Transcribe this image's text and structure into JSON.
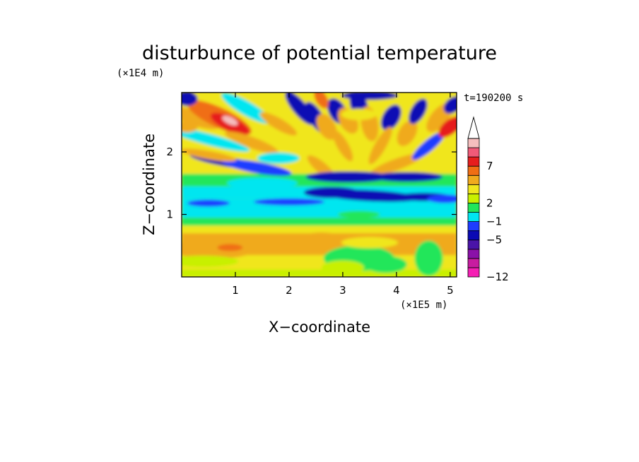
{
  "chart_data": {
    "type": "heatmap",
    "title": "disturbunce of potential temperature",
    "xlabel": "X−coordinate",
    "ylabel": "Z−coordinate",
    "x_unit": "(×1E5 m)",
    "y_unit": "(×1E4 m)",
    "time_label": "t=190200 s",
    "xlim": [
      0,
      5.12
    ],
    "ylim": [
      0,
      2.95
    ],
    "x_ticks": [
      {
        "value": 1,
        "label": "1"
      },
      {
        "value": 2,
        "label": "2"
      },
      {
        "value": 3,
        "label": "3"
      },
      {
        "value": 4,
        "label": "4"
      },
      {
        "value": 5,
        "label": "5"
      }
    ],
    "y_ticks": [
      {
        "value": 1,
        "label": "1"
      },
      {
        "value": 2,
        "label": "2"
      }
    ],
    "colorbar": {
      "levels": [
        {
          "color": "#f51fb4",
          "label": "−12"
        },
        {
          "color": "#c81ca0",
          "label": ""
        },
        {
          "color": "#8a11a8",
          "label": ""
        },
        {
          "color": "#4a14a8",
          "label": ""
        },
        {
          "color": "#0a0ab4",
          "label": "−5"
        },
        {
          "color": "#1e3cff",
          "label": ""
        },
        {
          "color": "#00e6f0",
          "label": "−1"
        },
        {
          "color": "#22e65a",
          "label": ""
        },
        {
          "color": "#c8f000",
          "label": "2"
        },
        {
          "color": "#f0e61e",
          "label": ""
        },
        {
          "color": "#f0aa1e",
          "label": ""
        },
        {
          "color": "#f06e14",
          "label": ""
        },
        {
          "color": "#e61e1e",
          "label": "7"
        },
        {
          "color": "#f05a78",
          "label": ""
        },
        {
          "color": "#f5bebe",
          "label": ""
        }
      ]
    }
  }
}
